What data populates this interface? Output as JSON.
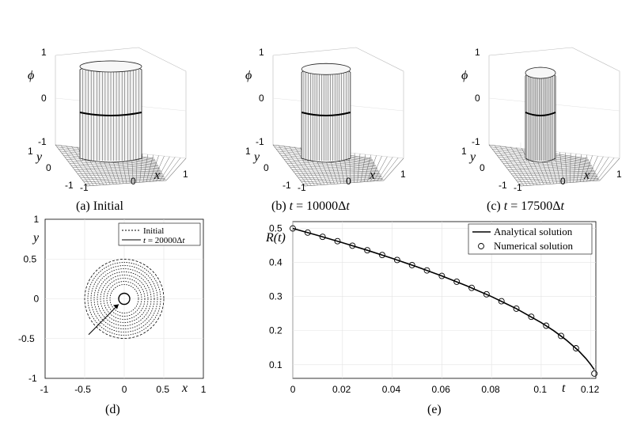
{
  "panels3d": [
    {
      "id": "a",
      "caption": "(a) Initial",
      "zticks": [
        "1",
        "0",
        "-1"
      ],
      "zlabel": "ϕ",
      "yticks": [
        "1",
        "0",
        "-1"
      ],
      "ylabel": "y",
      "xticks": [
        "-1",
        "0",
        "1"
      ],
      "xlabel": "x",
      "radius": 0.5
    },
    {
      "id": "b",
      "caption": "(b) t = 10000Δt",
      "zticks": [
        "1",
        "0",
        "-1"
      ],
      "zlabel": "ϕ",
      "yticks": [
        "1",
        "0",
        "-1"
      ],
      "ylabel": "y",
      "xticks": [
        "-1",
        "0",
        "1"
      ],
      "xlabel": "x",
      "radius": 0.39
    },
    {
      "id": "c",
      "caption": "(c) t = 17500Δt",
      "zticks": [
        "1",
        "0",
        "-1"
      ],
      "zlabel": "ϕ",
      "yticks": [
        "1",
        "0",
        "-1"
      ],
      "ylabel": "y",
      "xticks": [
        "-1",
        "0",
        "1"
      ],
      "xlabel": "x",
      "radius": 0.23
    }
  ],
  "captions": {
    "a": "(a) Initial",
    "b_prefix": "(b) ",
    "b_t": "t",
    "b_eq": " = 10000Δ",
    "b_t2": "t",
    "c_prefix": "(c) ",
    "c_t": "t",
    "c_eq": " = 17500Δ",
    "c_t2": "t",
    "d": "(d)",
    "e": "(e)"
  },
  "panel_d": {
    "xlabel": "x",
    "ylabel": "y",
    "xticks": [
      "-1",
      "-0.5",
      "0",
      "0.5",
      "1"
    ],
    "yticks": [
      "1",
      "0.5",
      "0",
      "-0.5",
      "-1"
    ],
    "legend": {
      "initial": "Initial",
      "final_t": "t",
      "final_eq": " = 20000Δ",
      "final_t2": "t"
    },
    "contour_radii": [
      0.5,
      0.46,
      0.42,
      0.38,
      0.34,
      0.3,
      0.26,
      0.22,
      0.18
    ]
  },
  "chart_data": {
    "type": "line",
    "xlabel": "t",
    "ylabel": "R(t)",
    "xlim": [
      0,
      0.122
    ],
    "ylim": [
      0.06,
      0.52
    ],
    "xticks": [
      "0",
      "0.02",
      "0.04",
      "0.06",
      "0.08",
      "0.1",
      "0.12"
    ],
    "yticks": [
      "0.5",
      "0.4",
      "0.3",
      "0.2",
      "0.1"
    ],
    "legend_placement": "top-right",
    "series": [
      {
        "name": "Analytical solution",
        "style": "solid",
        "x": [
          0,
          0.01,
          0.02,
          0.03,
          0.04,
          0.05,
          0.06,
          0.07,
          0.08,
          0.09,
          0.1,
          0.105,
          0.11,
          0.115,
          0.118,
          0.12,
          0.1214
        ],
        "y": [
          0.5,
          0.4796,
          0.4583,
          0.4359,
          0.4123,
          0.3873,
          0.3606,
          0.3317,
          0.3,
          0.2646,
          0.2236,
          0.2,
          0.1732,
          0.1414,
          0.1183,
          0.1,
          0.085
        ]
      },
      {
        "name": "Numerical solution",
        "style": "markers",
        "x": [
          0,
          0.006,
          0.012,
          0.018,
          0.024,
          0.03,
          0.036,
          0.042,
          0.048,
          0.054,
          0.06,
          0.066,
          0.072,
          0.078,
          0.084,
          0.09,
          0.096,
          0.102,
          0.108,
          0.114,
          0.1214
        ],
        "y": [
          0.5,
          0.4878,
          0.4754,
          0.4626,
          0.4494,
          0.4359,
          0.4219,
          0.4074,
          0.3924,
          0.3768,
          0.3606,
          0.3435,
          0.3256,
          0.3066,
          0.2864,
          0.2646,
          0.2408,
          0.2145,
          0.1844,
          0.1483,
          0.074
        ]
      }
    ]
  },
  "legend_e": {
    "analytical": "Analytical solution",
    "numerical": "Numerical solution"
  }
}
